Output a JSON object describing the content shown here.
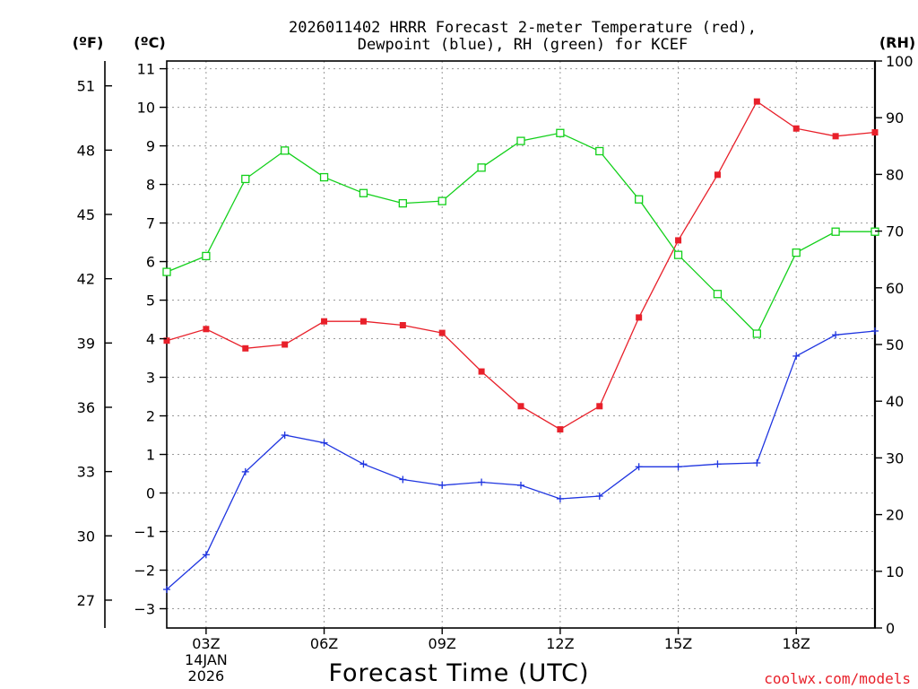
{
  "chart_data": {
    "type": "line",
    "title": "2026011402 HRRR Forecast 2-meter Temperature (red),",
    "title_line2": "Dewpoint (blue), RH (green) for KCEF",
    "xlabel": "Forecast Time (UTC)",
    "credit": "coolwx.com/models",
    "units": {
      "fahrenheit": "(ºF)",
      "celsius": "(ºC)",
      "rh": "(RH)"
    },
    "x": [
      2,
      3,
      4,
      5,
      6,
      7,
      8,
      9,
      10,
      11,
      12,
      13,
      14,
      15,
      16,
      17,
      18,
      19,
      20
    ],
    "xlim": [
      2,
      20
    ],
    "x_ticks": [
      {
        "x": 3,
        "label": "03Z",
        "sub": [
          "14JAN",
          "2026"
        ]
      },
      {
        "x": 6,
        "label": "06Z"
      },
      {
        "x": 9,
        "label": "09Z"
      },
      {
        "x": 12,
        "label": "12Z"
      },
      {
        "x": 15,
        "label": "15Z"
      },
      {
        "x": 18,
        "label": "18Z"
      }
    ],
    "celsius_axis": {
      "ylim": [
        -3.5,
        11.2
      ],
      "ticks": [
        -3,
        -2,
        -1,
        0,
        1,
        2,
        3,
        4,
        5,
        6,
        7,
        8,
        9,
        10,
        11
      ],
      "tick_labels": [
        "−3",
        "−2",
        "−1",
        "0",
        "1",
        "2",
        "3",
        "4",
        "5",
        "6",
        "7",
        "8",
        "9",
        "10",
        "11"
      ]
    },
    "fahrenheit_axis": {
      "ticks": [
        27,
        30,
        33,
        36,
        39,
        42,
        45,
        48,
        51
      ]
    },
    "rh_axis": {
      "ylim": [
        0,
        100
      ],
      "ticks": [
        0,
        10,
        20,
        30,
        40,
        50,
        60,
        70,
        80,
        90,
        100
      ]
    },
    "series": [
      {
        "name": "Temperature",
        "axis": "celsius",
        "color": "#e8202a",
        "marker": "filled-square",
        "values": [
          3.95,
          4.25,
          3.75,
          3.85,
          4.45,
          4.45,
          4.35,
          4.15,
          3.15,
          2.25,
          1.65,
          2.25,
          4.55,
          6.55,
          8.25,
          10.15,
          9.45,
          9.25,
          9.35
        ]
      },
      {
        "name": "Dewpoint",
        "axis": "celsius",
        "color": "#1f35e0",
        "marker": "plus",
        "values": [
          -2.5,
          -1.6,
          0.55,
          1.5,
          1.3,
          0.75,
          0.35,
          0.2,
          0.28,
          0.2,
          -0.15,
          -0.08,
          0.68,
          0.68,
          0.75,
          0.78,
          3.55,
          4.1,
          4.2
        ]
      },
      {
        "name": "RH",
        "axis": "rh",
        "color": "#12d01a",
        "marker": "open-square",
        "values": [
          62.8,
          65.6,
          79.2,
          84.2,
          79.5,
          76.7,
          74.9,
          75.3,
          81.2,
          85.9,
          87.3,
          84.1,
          75.6,
          65.8,
          58.9,
          51.9,
          66.2,
          69.9,
          69.9
        ]
      }
    ]
  }
}
